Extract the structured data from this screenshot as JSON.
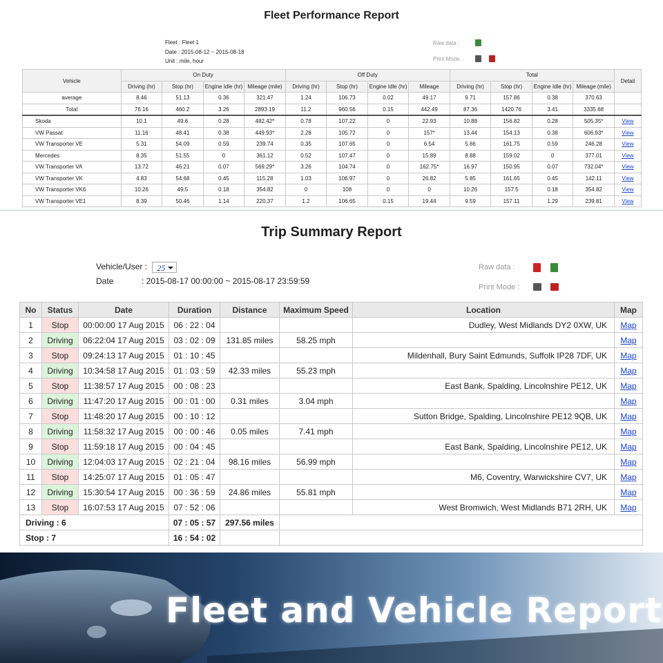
{
  "fleet_report": {
    "title": "Fleet Performance Report",
    "meta": [
      "Fleet : Fleet 1",
      "Date : 2015-08-12 ~ 2015-08-18",
      "Unit  : mile, hour"
    ],
    "raw_data": "Raw data   :",
    "print_mode": "Print Mode   :",
    "header_groups": [
      "Vehicle",
      "On Duty",
      "Off Duty",
      "Total",
      "Detail"
    ],
    "sub_headers": [
      "Driving (hr)",
      "Stop (hr)",
      "Engine Idle (hr)",
      "Mileage (mile)",
      "Driving (hr)",
      "Stop (hr)",
      "Engine Idle (hr)",
      "Mileage",
      "Driving (hr)",
      "Stop (hr)",
      "Engine Idle (hr)",
      "Mileage (mile)"
    ],
    "summary_rows": [
      [
        "average",
        "8.46",
        "51.13",
        "0.36",
        "321.47",
        "1.24",
        "106.73",
        "0.02",
        "49.17",
        "9.71",
        "157.86",
        "0.38",
        "370.63"
      ],
      [
        "Total",
        "76.16",
        "460.2",
        "3.26",
        "2893.19",
        "11.2",
        "960.56",
        "0.15",
        "442.49",
        "87.36",
        "1420.76",
        "3.41",
        "3335.68"
      ]
    ],
    "rows": [
      [
        "Skoda",
        "10.1",
        "49.6",
        "0.28",
        "482.42*",
        "0.78",
        "107.22",
        "0",
        "22.93",
        "10.88",
        "156.82",
        "0.28",
        "505.35*",
        "View"
      ],
      [
        "VW Passat",
        "11.16",
        "48.41",
        "0.38",
        "449.93*",
        "2.28",
        "105.72",
        "0",
        "157*",
        "13.44",
        "154.13",
        "0.38",
        "606.93*",
        "View"
      ],
      [
        "VW Transporter VE",
        "5.31",
        "54.09",
        "0.59",
        "239.74",
        "0.35",
        "107.65",
        "0",
        "6.54",
        "5.66",
        "161.75",
        "0.59",
        "246.28",
        "View"
      ],
      [
        "Mercedes",
        "8.35",
        "51.55",
        "0",
        "361.12",
        "0.52",
        "107.47",
        "0",
        "15.89",
        "8.88",
        "159.02",
        "0",
        "377.01",
        "View"
      ],
      [
        "VW Transporter VA",
        "13.72",
        "46.21",
        "0.07",
        "569.29*",
        "3.26",
        "104.74",
        "0",
        "162.75*",
        "16.97",
        "150.95",
        "0.07",
        "732.04*",
        "View"
      ],
      [
        "VW Transporter VK",
        "4.83",
        "54.68",
        "0.45",
        "115.28",
        "1.03",
        "106.97",
        "0",
        "26.82",
        "5.85",
        "161.65",
        "0.45",
        "142.11",
        "View"
      ],
      [
        "VW Transporter VK6",
        "10.26",
        "49.5",
        "0.18",
        "354.82",
        "0",
        "108",
        "0",
        "0",
        "10.26",
        "157.5",
        "0.18",
        "354.82",
        "View"
      ],
      [
        "VW Transporter VE1",
        "8.39",
        "50.46",
        "1.14",
        "220.37",
        "1.2",
        "106.65",
        "0.15",
        "19.44",
        "9.59",
        "157.11",
        "1.29",
        "239.81",
        "View"
      ]
    ]
  },
  "trip_report": {
    "title": "Trip Summary Report",
    "vehicle_label": "Vehicle/User :",
    "vehicle_value": "25",
    "date_label": "Date",
    "date_value": ": 2015-08-17 00:00:00 ~ 2015-08-17 23:59:59",
    "raw_data": "Raw data   :",
    "print_mode": "Print Mode   :",
    "columns": [
      "No",
      "Status",
      "Date",
      "Duration",
      "Distance",
      "Maximum Speed",
      "Location",
      "Map"
    ],
    "rows": [
      [
        "1",
        "Stop",
        "00:00:00 17 Aug 2015",
        "06 : 22 : 04",
        "",
        "",
        "Dudley, West Midlands DY2 0XW, UK",
        "Map"
      ],
      [
        "2",
        "Driving",
        "06:22:04 17 Aug 2015",
        "03 : 02 : 09",
        "131.85 miles",
        "58.25 mph",
        "",
        "Map"
      ],
      [
        "3",
        "Stop",
        "09:24:13 17 Aug 2015",
        "01 : 10 : 45",
        "",
        "",
        "Mildenhall, Bury Saint Edmunds, Suffolk IP28 7DF, UK",
        "Map"
      ],
      [
        "4",
        "Driving",
        "10:34:58 17 Aug 2015",
        "01 : 03 : 59",
        "42.33 miles",
        "55.23 mph",
        "",
        "Map"
      ],
      [
        "5",
        "Stop",
        "11:38:57 17 Aug 2015",
        "00 : 08 : 23",
        "",
        "",
        "East Bank, Spalding, Lincolnshire PE12, UK",
        "Map"
      ],
      [
        "6",
        "Driving",
        "11:47:20 17 Aug 2015",
        "00 : 01 : 00",
        "0.31 miles",
        "3.04 mph",
        "",
        "Map"
      ],
      [
        "7",
        "Stop",
        "11:48:20 17 Aug 2015",
        "00 : 10 : 12",
        "",
        "",
        "Sutton Bridge, Spalding, Lincolnshire PE12 9QB, UK",
        "Map"
      ],
      [
        "8",
        "Driving",
        "11:58:32 17 Aug 2015",
        "00 : 00 : 46",
        "0.05 miles",
        "7.41 mph",
        "",
        "Map"
      ],
      [
        "9",
        "Stop",
        "11:59:18 17 Aug 2015",
        "00 : 04 : 45",
        "",
        "",
        "East Bank, Spalding, Lincolnshire PE12, UK",
        "Map"
      ],
      [
        "10",
        "Driving",
        "12:04:03 17 Aug 2015",
        "02 : 21 : 04",
        "98.16 miles",
        "56.99 mph",
        "",
        "Map"
      ],
      [
        "11",
        "Stop",
        "14:25:07 17 Aug 2015",
        "01 : 05 : 47",
        "",
        "",
        "M6, Coventry, Warwickshire CV7, UK",
        "Map"
      ],
      [
        "12",
        "Driving",
        "15:30:54 17 Aug 2015",
        "00 : 36 : 59",
        "24.86 miles",
        "55.81 mph",
        "",
        "Map"
      ],
      [
        "13",
        "Stop",
        "16:07:53 17 Aug 2015",
        "07 : 52 : 06",
        "",
        "",
        "West Bromwich, West Midlands B71 2RH, UK",
        "Map"
      ]
    ],
    "footer": [
      [
        "Driving : 6",
        "07 : 05 : 57",
        "297.56 miles"
      ],
      [
        "Stop : 7",
        "16 : 54 : 02"
      ]
    ]
  },
  "banner": {
    "text": "Fleet and Vehicle Reports"
  }
}
